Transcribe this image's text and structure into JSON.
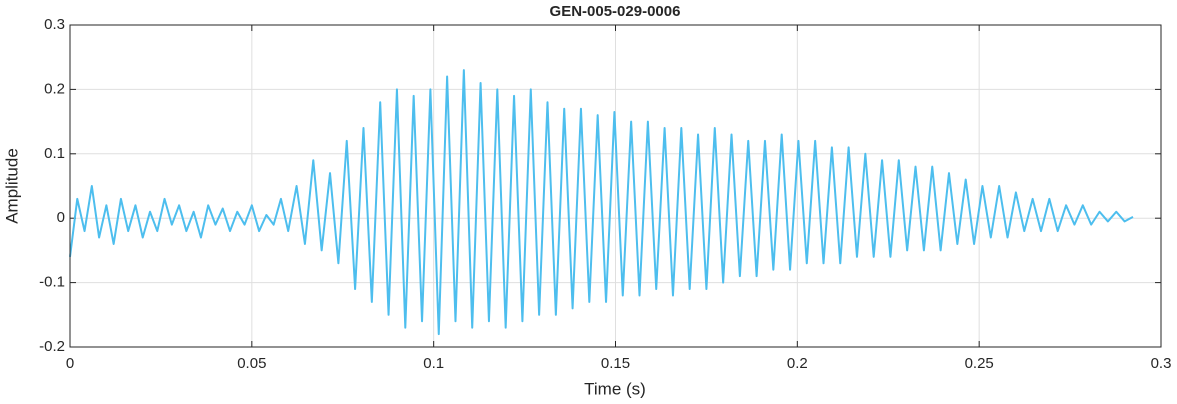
{
  "chart_data": {
    "type": "line",
    "title": "GEN-005-029-0006",
    "xlabel": "Time (s)",
    "ylabel": "Amplitude",
    "xlim": [
      0,
      0.3
    ],
    "ylim": [
      -0.2,
      0.3
    ],
    "xticks": [
      0,
      0.05,
      0.1,
      0.15,
      0.2,
      0.25,
      0.3
    ],
    "yticks": [
      -0.2,
      -0.1,
      0,
      0.1,
      0.2,
      0.3
    ],
    "grid": true,
    "series": [
      {
        "color": "#4dbeee",
        "x": [
          0,
          0.002,
          0.004,
          0.006,
          0.008,
          0.01,
          0.012,
          0.014,
          0.016,
          0.018,
          0.02,
          0.022,
          0.024,
          0.026,
          0.028,
          0.03,
          0.032,
          0.034,
          0.036,
          0.038,
          0.04,
          0.042,
          0.044,
          0.046,
          0.048,
          0.05,
          0.052,
          0.054,
          0.056,
          0.058,
          0.06,
          0.0623,
          0.0646,
          0.0669,
          0.0692,
          0.0715,
          0.0738,
          0.0761,
          0.0784,
          0.0807,
          0.083,
          0.0853,
          0.0876,
          0.0899,
          0.0922,
          0.0945,
          0.0968,
          0.0991,
          0.1014,
          0.1037,
          0.106,
          0.1083,
          0.1106,
          0.1129,
          0.1152,
          0.1175,
          0.1198,
          0.1221,
          0.1244,
          0.1267,
          0.129,
          0.1313,
          0.1336,
          0.1359,
          0.1382,
          0.1405,
          0.1428,
          0.1451,
          0.1474,
          0.1497,
          0.152,
          0.1543,
          0.1566,
          0.1589,
          0.1612,
          0.1635,
          0.1658,
          0.1681,
          0.1704,
          0.1727,
          0.175,
          0.1773,
          0.1796,
          0.1819,
          0.1842,
          0.1865,
          0.1888,
          0.1911,
          0.1934,
          0.1957,
          0.198,
          0.2003,
          0.2026,
          0.2049,
          0.2072,
          0.2095,
          0.2118,
          0.2141,
          0.2164,
          0.2187,
          0.221,
          0.2233,
          0.2256,
          0.2279,
          0.2302,
          0.2325,
          0.2348,
          0.2371,
          0.2394,
          0.2417,
          0.244,
          0.2463,
          0.2486,
          0.2509,
          0.2532,
          0.2555,
          0.2578,
          0.2601,
          0.2624,
          0.2647,
          0.267,
          0.2693,
          0.2716,
          0.2739,
          0.2762,
          0.2785,
          0.2808,
          0.2831,
          0.2854,
          0.2877,
          0.29,
          0.2923
        ],
        "values": [
          -0.06,
          0.03,
          -0.02,
          0.05,
          -0.03,
          0.02,
          -0.04,
          0.03,
          -0.02,
          0.02,
          -0.03,
          0.01,
          -0.02,
          0.03,
          -0.01,
          0.02,
          -0.02,
          0.01,
          -0.03,
          0.02,
          -0.01,
          0.015,
          -0.02,
          0.01,
          -0.01,
          0.02,
          -0.02,
          0.005,
          -0.01,
          0.03,
          -0.02,
          0.05,
          -0.04,
          0.09,
          -0.05,
          0.07,
          -0.07,
          0.12,
          -0.11,
          0.14,
          -0.13,
          0.18,
          -0.15,
          0.2,
          -0.17,
          0.19,
          -0.16,
          0.2,
          -0.18,
          0.22,
          -0.16,
          0.23,
          -0.17,
          0.21,
          -0.16,
          0.2,
          -0.17,
          0.19,
          -0.16,
          0.2,
          -0.15,
          0.18,
          -0.15,
          0.17,
          -0.14,
          0.17,
          -0.13,
          0.16,
          -0.13,
          0.165,
          -0.12,
          0.15,
          -0.12,
          0.15,
          -0.11,
          0.14,
          -0.12,
          0.14,
          -0.11,
          0.13,
          -0.11,
          0.14,
          -0.1,
          0.13,
          -0.09,
          0.12,
          -0.09,
          0.12,
          -0.08,
          0.13,
          -0.08,
          0.12,
          -0.07,
          0.12,
          -0.07,
          0.11,
          -0.07,
          0.11,
          -0.06,
          0.1,
          -0.06,
          0.09,
          -0.06,
          0.09,
          -0.05,
          0.08,
          -0.05,
          0.08,
          -0.05,
          0.07,
          -0.04,
          0.06,
          -0.04,
          0.05,
          -0.03,
          0.05,
          -0.03,
          0.04,
          -0.02,
          0.03,
          -0.02,
          0.03,
          -0.02,
          0.02,
          -0.01,
          0.02,
          -0.01,
          0.01,
          -0.005,
          0.01,
          -0.005,
          0.002
        ]
      }
    ]
  }
}
